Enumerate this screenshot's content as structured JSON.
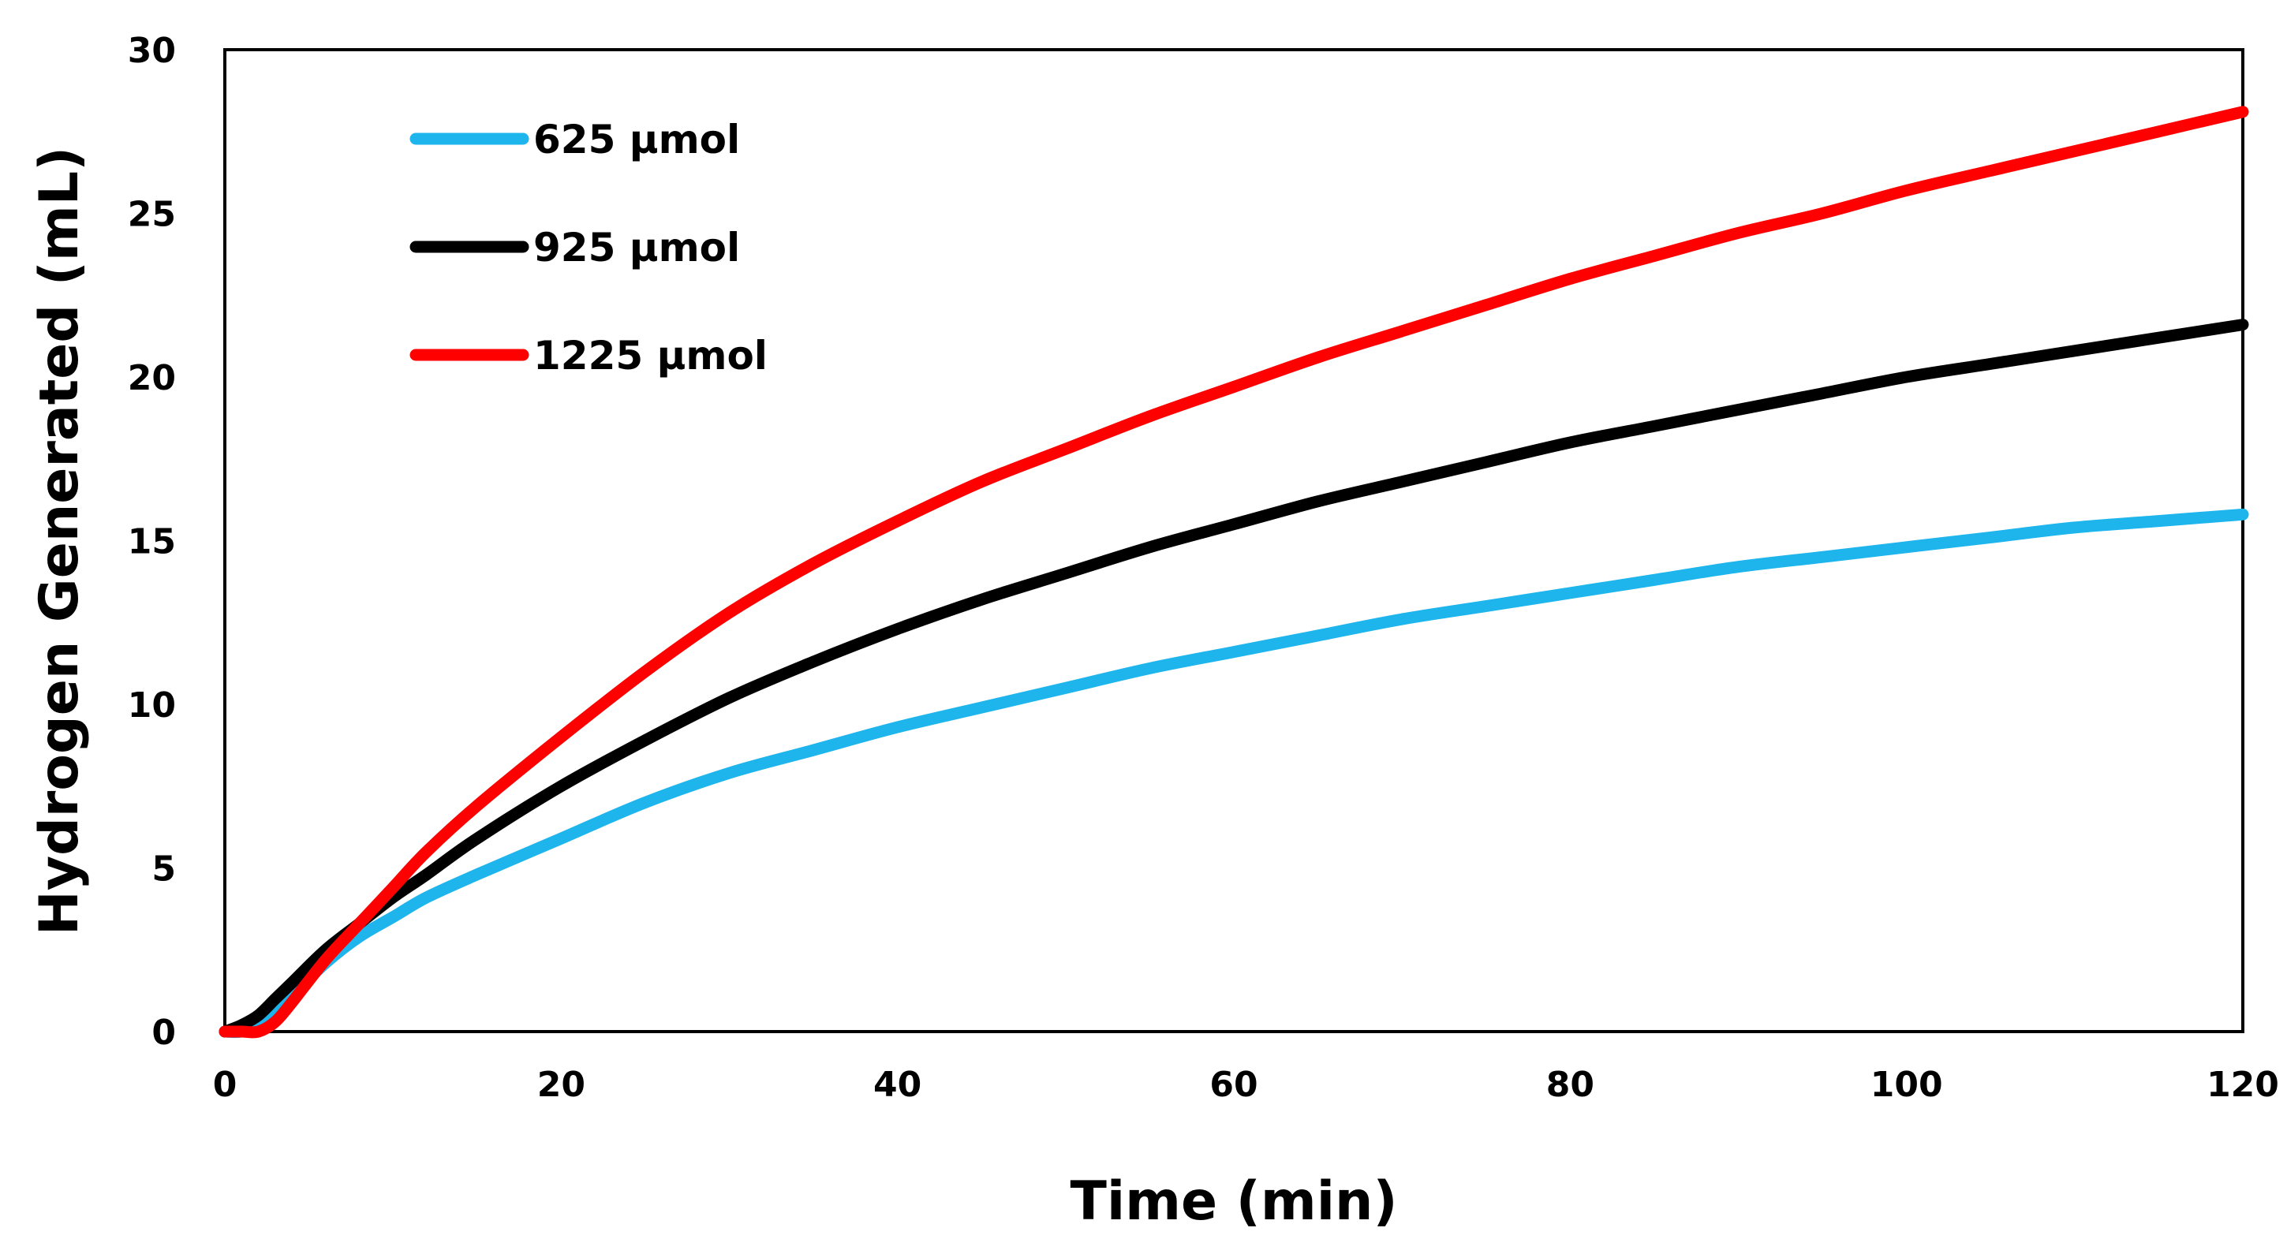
{
  "chart_data": {
    "type": "line",
    "title": "",
    "xlabel": "Time (min)",
    "ylabel": "Hydrogen Generated (mL)",
    "xlim": [
      0,
      120
    ],
    "ylim": [
      0,
      30
    ],
    "xticks": [
      "0",
      "20",
      "40",
      "60",
      "80",
      "100",
      "120"
    ],
    "yticks": [
      "0",
      "5",
      "10",
      "15",
      "20",
      "25",
      "30"
    ],
    "grid": false,
    "legend_position": "top-left",
    "x": [
      0,
      1,
      2,
      3,
      4,
      6,
      8,
      10,
      12,
      15,
      20,
      25,
      30,
      35,
      40,
      45,
      50,
      55,
      60,
      65,
      70,
      75,
      80,
      85,
      90,
      95,
      100,
      105,
      110,
      115,
      120
    ],
    "series": [
      {
        "name": "625 μmol",
        "color": "#1eb4ec",
        "values": [
          0.0,
          0.0,
          0.2,
          0.6,
          1.1,
          2.1,
          2.9,
          3.5,
          4.1,
          4.8,
          5.9,
          7.0,
          7.9,
          8.6,
          9.3,
          9.9,
          10.5,
          11.1,
          11.6,
          12.1,
          12.6,
          13.0,
          13.4,
          13.8,
          14.2,
          14.5,
          14.8,
          15.1,
          15.4,
          15.6,
          15.8
        ]
      },
      {
        "name": "925 μmol",
        "color": "#000000",
        "values": [
          0.0,
          0.2,
          0.5,
          1.0,
          1.5,
          2.5,
          3.3,
          4.1,
          4.8,
          5.9,
          7.5,
          8.9,
          10.2,
          11.3,
          12.3,
          13.2,
          14.0,
          14.8,
          15.5,
          16.2,
          16.8,
          17.4,
          18.0,
          18.5,
          19.0,
          19.5,
          20.0,
          20.4,
          20.8,
          21.2,
          21.6
        ]
      },
      {
        "name": "1225 μmol",
        "color": "#ff0000",
        "values": [
          0.0,
          0.0,
          0.0,
          0.3,
          0.9,
          2.2,
          3.3,
          4.4,
          5.5,
          6.9,
          9.0,
          11.0,
          12.8,
          14.3,
          15.6,
          16.8,
          17.8,
          18.8,
          19.7,
          20.6,
          21.4,
          22.2,
          23.0,
          23.7,
          24.4,
          25.0,
          25.7,
          26.3,
          26.9,
          27.5,
          28.1
        ]
      }
    ]
  }
}
